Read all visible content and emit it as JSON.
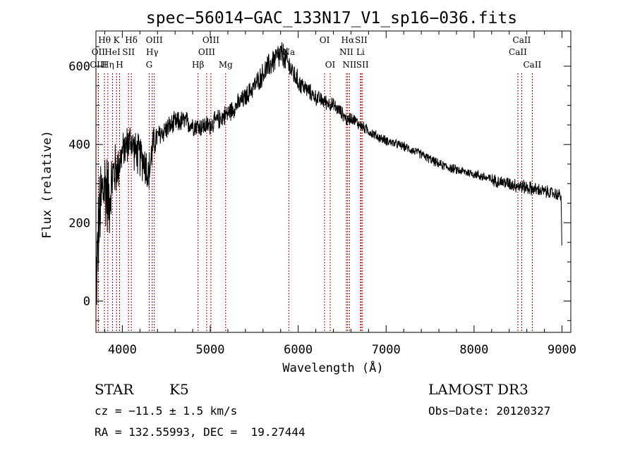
{
  "chart_data": {
    "type": "line",
    "title": "spec−56014−GAC_133N17_V1_sp16−036.fits",
    "xlabel": "Wavelength (Å)",
    "ylabel": "Flux (relative)",
    "xlim": [
      3700,
      9100
    ],
    "ylim": [
      -80,
      690
    ],
    "x_ticks": [
      4000,
      5000,
      6000,
      7000,
      8000,
      9000
    ],
    "x_tick_labels": [
      "4000",
      "5000",
      "6000",
      "7000",
      "8000",
      "9000"
    ],
    "y_ticks": [
      0,
      200,
      400,
      600
    ],
    "y_tick_labels": [
      "0",
      "200",
      "400",
      "600"
    ],
    "grid": false,
    "line_color": "#000000",
    "marker_color": "#aa0000",
    "spectrum_anchors": {
      "x": [
        3700,
        3730,
        3760,
        3800,
        3850,
        3900,
        3950,
        4000,
        4050,
        4100,
        4150,
        4200,
        4250,
        4300,
        4350,
        4400,
        4500,
        4600,
        4700,
        4800,
        4900,
        5000,
        5100,
        5200,
        5300,
        5400,
        5500,
        5600,
        5700,
        5800,
        5850,
        5900,
        5950,
        6000,
        6100,
        6200,
        6300,
        6400,
        6500,
        6560,
        6600,
        6700,
        6800,
        6900,
        7000,
        7200,
        7400,
        7600,
        7800,
        8000,
        8200,
        8400,
        8500,
        8600,
        8700,
        8800,
        8900,
        8990,
        9000
      ],
      "y": [
        40,
        180,
        260,
        300,
        260,
        330,
        340,
        380,
        400,
        410,
        380,
        370,
        360,
        320,
        400,
        420,
        440,
        455,
        460,
        450,
        445,
        450,
        465,
        480,
        500,
        520,
        550,
        580,
        610,
        630,
        620,
        600,
        580,
        560,
        540,
        520,
        510,
        500,
        480,
        460,
        470,
        450,
        435,
        420,
        410,
        395,
        375,
        350,
        335,
        325,
        310,
        300,
        295,
        290,
        285,
        280,
        275,
        270,
        100
      ],
      "noise_amplitude": {
        "x": [
          3700,
          3800,
          3900,
          4000,
          4300,
          4400,
          5000,
          5500,
          5800,
          6100,
          6500,
          7000,
          8000,
          8500,
          9000
        ],
        "amp": [
          150,
          140,
          90,
          55,
          70,
          35,
          30,
          30,
          45,
          25,
          20,
          14,
          14,
          22,
          18
        ]
      }
    },
    "line_markers": [
      {
        "label": "Hθ",
        "x": 3797,
        "row": 1
      },
      {
        "label": "OII",
        "x": 3727,
        "row": 2
      },
      {
        "label": "OIII",
        "x": 3727,
        "row": 3
      },
      {
        "label": "K",
        "x": 3934,
        "row": 1
      },
      {
        "label": "HeI",
        "x": 3889,
        "row": 2
      },
      {
        "label": "Hη",
        "x": 3835,
        "row": 3
      },
      {
        "label": "H",
        "x": 3969,
        "row": 3
      },
      {
        "label": "Hδ",
        "x": 4102,
        "row": 1
      },
      {
        "label": "SII",
        "x": 4070,
        "row": 2
      },
      {
        "label": "OIII",
        "x": 4363,
        "row": 1
      },
      {
        "label": "Hγ",
        "x": 4340,
        "row": 2
      },
      {
        "label": "G",
        "x": 4305,
        "row": 3
      },
      {
        "label": "Hβ",
        "x": 4861,
        "row": 3
      },
      {
        "label": "OIII",
        "x": 5007,
        "row": 1
      },
      {
        "label": "OIII",
        "x": 4959,
        "row": 2
      },
      {
        "label": "Mg",
        "x": 5175,
        "row": 3
      },
      {
        "label": "Na",
        "x": 5893,
        "row": 2
      },
      {
        "label": "OI",
        "x": 6300,
        "row": 1
      },
      {
        "label": "OI",
        "x": 6364,
        "row": 3
      },
      {
        "label": "Hα",
        "x": 6563,
        "row": 1
      },
      {
        "label": "NII",
        "x": 6548,
        "row": 2
      },
      {
        "label": "NII",
        "x": 6583,
        "row": 3
      },
      {
        "label": "SII",
        "x": 6716,
        "row": 1
      },
      {
        "label": "Li",
        "x": 6708,
        "row": 2
      },
      {
        "label": "SII",
        "x": 6731,
        "row": 3
      },
      {
        "label": "CaII",
        "x": 8542,
        "row": 1
      },
      {
        "label": "CaII",
        "x": 8498,
        "row": 2
      },
      {
        "label": "CaII",
        "x": 8662,
        "row": 3
      }
    ]
  },
  "info": {
    "object_class": "STAR",
    "subclass": "K5",
    "survey": "LAMOST DR3",
    "redshift": "cz = −11.5 ± 1.5 km/s",
    "obs_date": "Obs−Date: 20120327",
    "coords": "RA = 132.55993, DEC =  19.27444"
  }
}
